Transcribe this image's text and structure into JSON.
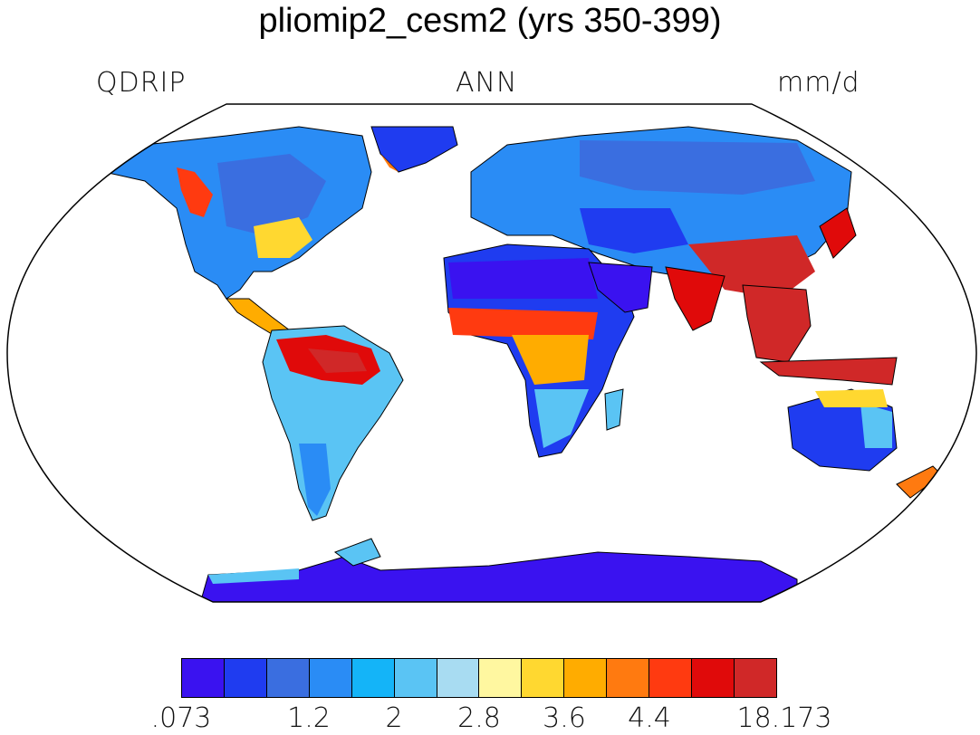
{
  "plot": {
    "title": "pliomip2_cesm2 (yrs 350-399)",
    "variable": "QDRIP",
    "season": "ANN",
    "units": "mm/d"
  },
  "colorbar": {
    "colors": [
      "#3a12f0",
      "#1f3cf0",
      "#3a6ee0",
      "#2a8cf5",
      "#14b4f8",
      "#5ac4f4",
      "#a8dcf2",
      "#fff7a0",
      "#ffd830",
      "#ffac00",
      "#ff7a10",
      "#ff3a10",
      "#e00a0a",
      "#d02828"
    ],
    "tick_labels": [
      ".073",
      "1.2",
      "2",
      "2.8",
      "3.6",
      "4.4",
      "18.173"
    ]
  },
  "legend_colors": {
    "ocean": "#ffffff",
    "coastline": "#000000"
  }
}
